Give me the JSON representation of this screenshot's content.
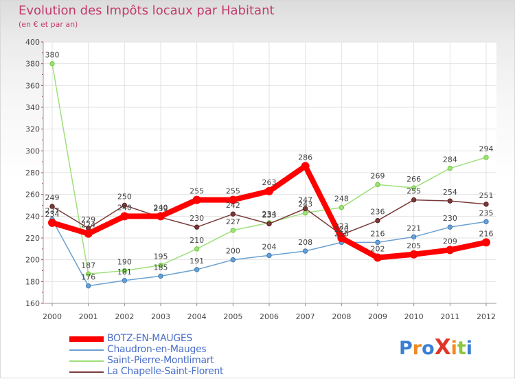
{
  "title": "Evolution des Impôts locaux par Habitant",
  "subtitle": "(en € et par an)",
  "logo": "ProXiti",
  "chart_data": {
    "type": "line",
    "title": "Evolution des Impôts locaux par Habitant",
    "subtitle": "(en € et par an)",
    "xlabel": "",
    "ylabel": "",
    "categories": [
      "2000",
      "2001",
      "2002",
      "2003",
      "2004",
      "2005",
      "2006",
      "2007",
      "2008",
      "2009",
      "2010",
      "2011",
      "2012"
    ],
    "ylim": [
      160,
      400
    ],
    "yticks": [
      160,
      180,
      200,
      220,
      240,
      260,
      280,
      300,
      320,
      340,
      360,
      380,
      400
    ],
    "grid": true,
    "legend_position": "bottom-left",
    "series": [
      {
        "name": "BOTZ-EN-MAUGES",
        "color": "#ff0000",
        "emphasis": true,
        "values": [
          234,
          224,
          240,
          240,
          255,
          255,
          263,
          286,
          220,
          202,
          205,
          209,
          216
        ]
      },
      {
        "name": "Chaudron-en-Mauges",
        "color": "#6aa0d0",
        "values": [
          237,
          176,
          181,
          185,
          191,
          200,
          204,
          208,
          216,
          216,
          221,
          230,
          235
        ]
      },
      {
        "name": "Saint-Pierre-Montlimart",
        "color": "#9ee07a",
        "values": [
          380,
          187,
          190,
          195,
          210,
          227,
          234,
          243,
          248,
          269,
          266,
          284,
          294
        ]
      },
      {
        "name": "La Chapelle-Saint-Florent",
        "color": "#7a3a3a",
        "values": [
          249,
          229,
          250,
          239,
          230,
          242,
          233,
          247,
          223,
          236,
          255,
          254,
          251
        ]
      }
    ]
  }
}
